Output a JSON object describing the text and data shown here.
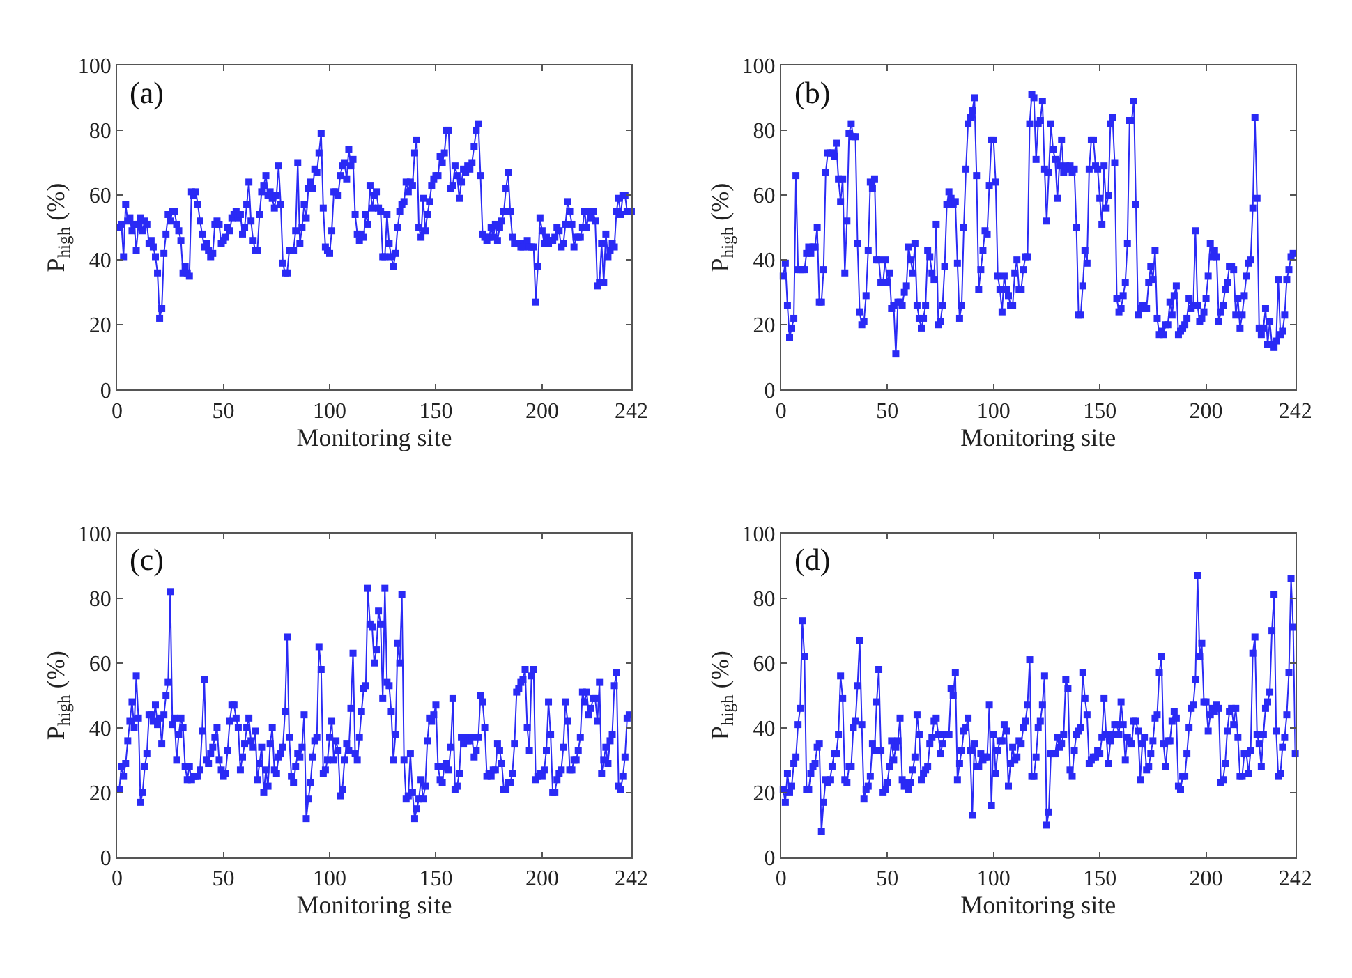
{
  "chart_data": [
    {
      "type": "line",
      "annotations": [
        "(a)"
      ],
      "xlabel": "Monitoring site",
      "ylabel": "P$_{high}$ (%)",
      "xlim": [
        0,
        242
      ],
      "xticks": [
        0,
        50,
        100,
        150,
        200,
        242
      ],
      "ylim": [
        0,
        100
      ],
      "yticks": [
        0,
        20,
        40,
        60,
        80,
        100
      ],
      "grid": false,
      "marker": "square",
      "line_style": "solid",
      "x": [
        1,
        2,
        3,
        4,
        5,
        6,
        7,
        8,
        9,
        10,
        11,
        12,
        13,
        14,
        15,
        16,
        17,
        18,
        19,
        20,
        21,
        22,
        23,
        24,
        25,
        26,
        27,
        28,
        29,
        30,
        31,
        32,
        33,
        34,
        35,
        36,
        37,
        38,
        39,
        40,
        41,
        42,
        43,
        44,
        45,
        46,
        47,
        48,
        49,
        50,
        51,
        52,
        53,
        54,
        55,
        56,
        57,
        58,
        59,
        60,
        61,
        62,
        63,
        64,
        65,
        66,
        67,
        68,
        69,
        70,
        71,
        72,
        73,
        74,
        75,
        76,
        77,
        78,
        79,
        80,
        81,
        82,
        83,
        84,
        85,
        86,
        87,
        88,
        89,
        90,
        91,
        92,
        93,
        94,
        95,
        96,
        97,
        98,
        99,
        100,
        101,
        102,
        103,
        104,
        105,
        106,
        107,
        108,
        109,
        110,
        111,
        112,
        113,
        114,
        115,
        116,
        117,
        118,
        119,
        120,
        121,
        122,
        123,
        124,
        125,
        126,
        127,
        128,
        129,
        130,
        131,
        132,
        133,
        134,
        135,
        136,
        137,
        138,
        139,
        140,
        141,
        142,
        143,
        144,
        145,
        146,
        147,
        148,
        149,
        150,
        151,
        152,
        153,
        154,
        155,
        156,
        157,
        158,
        159,
        160,
        161,
        162,
        163,
        164,
        165,
        166,
        167,
        168,
        169,
        170,
        171,
        172,
        173,
        174,
        175,
        176,
        177,
        178,
        179,
        180,
        181,
        182,
        183,
        184,
        185,
        186,
        187,
        188,
        189,
        190,
        191,
        192,
        193,
        194,
        195,
        196,
        197,
        198,
        199,
        200,
        201,
        202,
        203,
        204,
        205,
        206,
        207,
        208,
        209,
        210,
        211,
        212,
        213,
        214,
        215,
        216,
        217,
        218,
        219,
        220,
        221,
        222,
        223,
        224,
        225,
        226,
        227,
        228,
        229,
        230,
        231,
        232,
        233,
        234,
        235,
        236,
        237,
        238,
        239,
        240,
        241,
        242
      ],
      "series": [
        {
          "color": "#2a2af5",
          "values": [
            50,
            51,
            41,
            57,
            52,
            53,
            49,
            51,
            43,
            51,
            53,
            49,
            52,
            51,
            45,
            46,
            44,
            41,
            36,
            22,
            25,
            42,
            48,
            54,
            52,
            55,
            55,
            51,
            49,
            46,
            36,
            38,
            36,
            35,
            61,
            60,
            61,
            57,
            52,
            48,
            44,
            45,
            43,
            41,
            42,
            51,
            52,
            51,
            45,
            46,
            47,
            50,
            49,
            53,
            54,
            55,
            53,
            54,
            48,
            50,
            57,
            64,
            52,
            46,
            43,
            43,
            54,
            61,
            63,
            66,
            60,
            61,
            59,
            56,
            60,
            69,
            57,
            39,
            36,
            36,
            43,
            43,
            43,
            49,
            70,
            45,
            50,
            57,
            53,
            62,
            64,
            62,
            68,
            67,
            73,
            79,
            56,
            44,
            43,
            42,
            49,
            61,
            61,
            60,
            66,
            69,
            70,
            65,
            74,
            69,
            71,
            54,
            48,
            46,
            48,
            47,
            54,
            51,
            63,
            56,
            60,
            61,
            56,
            55,
            41,
            41,
            54,
            45,
            41,
            38,
            42,
            50,
            55,
            57,
            58,
            64,
            61,
            64,
            63,
            73,
            77,
            50,
            47,
            59,
            49,
            54,
            58,
            63,
            65,
            66,
            66,
            72,
            70,
            73,
            80,
            80,
            62,
            63,
            69,
            66,
            59,
            64,
            68,
            67,
            69,
            68,
            70,
            75,
            80,
            82,
            66,
            48,
            47,
            46,
            47,
            50,
            47,
            51,
            46,
            50,
            52,
            55,
            62,
            67,
            55,
            47,
            45,
            45,
            45,
            44,
            44,
            45,
            46,
            44,
            44,
            44,
            27,
            38,
            53,
            49,
            45,
            47,
            45,
            46,
            46,
            47,
            50,
            49,
            44,
            45,
            51,
            58,
            55,
            51,
            44,
            47,
            47,
            47,
            50,
            55,
            50,
            55,
            53,
            55,
            52,
            32,
            33,
            45,
            33,
            48,
            41,
            43,
            45,
            44,
            55,
            59,
            54,
            60,
            60,
            55,
            55,
            55
          ]
        }
      ]
    },
    {
      "type": "line",
      "annotations": [
        "(b)"
      ],
      "xlabel": "Monitoring site",
      "ylabel": "P$_{high}$ (%)",
      "xlim": [
        0,
        242
      ],
      "xticks": [
        0,
        50,
        100,
        150,
        200,
        242
      ],
      "ylim": [
        0,
        100
      ],
      "yticks": [
        0,
        20,
        40,
        60,
        80,
        100
      ],
      "grid": false,
      "marker": "square",
      "line_style": "solid",
      "x": [
        1,
        2,
        3,
        4,
        5,
        6,
        7,
        8,
        9,
        10,
        11,
        12,
        13,
        14,
        15,
        16,
        17,
        18,
        19,
        20,
        21,
        22,
        23,
        24,
        25,
        26,
        27,
        28,
        29,
        30,
        31,
        32,
        33,
        34,
        35,
        36,
        37,
        38,
        39,
        40,
        41,
        42,
        43,
        44,
        45,
        46,
        47,
        48,
        49,
        50,
        51,
        52,
        53,
        54,
        55,
        56,
        57,
        58,
        59,
        60,
        61,
        62,
        63,
        64,
        65,
        66,
        67,
        68,
        69,
        70,
        71,
        72,
        73,
        74,
        75,
        76,
        77,
        78,
        79,
        80,
        81,
        82,
        83,
        84,
        85,
        86,
        87,
        88,
        89,
        90,
        91,
        92,
        93,
        94,
        95,
        96,
        97,
        98,
        99,
        100,
        101,
        102,
        103,
        104,
        105,
        106,
        107,
        108,
        109,
        110,
        111,
        112,
        113,
        114,
        115,
        116,
        117,
        118,
        119,
        120,
        121,
        122,
        123,
        124,
        125,
        126,
        127,
        128,
        129,
        130,
        131,
        132,
        133,
        134,
        135,
        136,
        137,
        138,
        139,
        140,
        141,
        142,
        143,
        144,
        145,
        146,
        147,
        148,
        149,
        150,
        151,
        152,
        153,
        154,
        155,
        156,
        157,
        158,
        159,
        160,
        161,
        162,
        163,
        164,
        165,
        166,
        167,
        168,
        169,
        170,
        171,
        172,
        173,
        174,
        175,
        176,
        177,
        178,
        179,
        180,
        181,
        182,
        183,
        184,
        185,
        186,
        187,
        188,
        189,
        190,
        191,
        192,
        193,
        194,
        195,
        196,
        197,
        198,
        199,
        200,
        201,
        202,
        203,
        204,
        205,
        206,
        207,
        208,
        209,
        210,
        211,
        212,
        213,
        214,
        215,
        216,
        217,
        218,
        219,
        220,
        221,
        222,
        223,
        224,
        225,
        226,
        227,
        228,
        229,
        230,
        231,
        232,
        233,
        234,
        235,
        236,
        237,
        238,
        239,
        240,
        241
      ],
      "series": [
        {
          "color": "#2a2af5",
          "values": [
            35,
            39,
            26,
            16,
            19,
            22,
            66,
            37,
            37,
            37,
            37,
            42,
            44,
            42,
            44,
            44,
            50,
            27,
            27,
            37,
            67,
            73,
            73,
            73,
            72,
            76,
            65,
            58,
            65,
            36,
            52,
            79,
            82,
            78,
            78,
            45,
            24,
            20,
            21,
            29,
            43,
            64,
            62,
            65,
            40,
            40,
            33,
            33,
            40,
            33,
            36,
            25,
            26,
            11,
            27,
            27,
            26,
            30,
            32,
            44,
            40,
            36,
            45,
            26,
            22,
            19,
            22,
            26,
            43,
            41,
            36,
            34,
            51,
            20,
            21,
            26,
            38,
            57,
            61,
            59,
            57,
            58,
            39,
            22,
            26,
            50,
            68,
            82,
            84,
            86,
            90,
            66,
            31,
            37,
            43,
            49,
            48,
            63,
            77,
            77,
            64,
            35,
            31,
            24,
            35,
            31,
            29,
            26,
            26,
            36,
            40,
            31,
            31,
            37,
            41,
            41,
            82,
            91,
            90,
            71,
            82,
            83,
            89,
            68,
            52,
            67,
            82,
            74,
            71,
            59,
            69,
            77,
            67,
            69,
            68,
            69,
            67,
            68,
            50,
            23,
            23,
            32,
            43,
            39,
            68,
            77,
            77,
            69,
            68,
            59,
            51,
            69,
            56,
            60,
            82,
            84,
            70,
            28,
            24,
            25,
            29,
            33,
            45,
            83,
            83,
            89,
            57,
            23,
            25,
            26,
            25,
            25,
            33,
            38,
            34,
            43,
            22,
            17,
            18,
            17,
            20,
            20,
            27,
            23,
            29,
            32,
            17,
            18,
            19,
            20,
            22,
            28,
            25,
            26,
            49,
            26,
            21,
            22,
            24,
            28,
            35,
            45,
            41,
            43,
            41,
            21,
            24,
            26,
            31,
            33,
            38,
            38,
            37,
            23,
            28,
            19,
            23,
            29,
            35,
            39,
            40,
            56,
            84,
            59,
            19,
            17,
            19,
            25,
            14,
            21,
            14,
            13,
            15,
            34,
            17,
            18,
            23,
            34,
            37,
            41,
            42
          ]
        }
      ]
    },
    {
      "type": "line",
      "annotations": [
        "(c)"
      ],
      "xlabel": "Monitoring site",
      "ylabel": "P$_{high}$ (%)",
      "xlim": [
        0,
        242
      ],
      "xticks": [
        0,
        50,
        100,
        150,
        200,
        242
      ],
      "ylim": [
        0,
        100
      ],
      "yticks": [
        0,
        20,
        40,
        60,
        80,
        100
      ],
      "grid": false,
      "marker": "square",
      "line_style": "solid",
      "x": [
        1,
        2,
        3,
        4,
        5,
        6,
        7,
        8,
        9,
        10,
        11,
        12,
        13,
        14,
        15,
        16,
        17,
        18,
        19,
        20,
        21,
        22,
        23,
        24,
        25,
        26,
        27,
        28,
        29,
        30,
        31,
        32,
        33,
        34,
        35,
        36,
        37,
        38,
        39,
        40,
        41,
        42,
        43,
        44,
        45,
        46,
        47,
        48,
        49,
        50,
        51,
        52,
        53,
        54,
        55,
        56,
        57,
        58,
        59,
        60,
        61,
        62,
        63,
        64,
        65,
        66,
        67,
        68,
        69,
        70,
        71,
        72,
        73,
        74,
        75,
        76,
        77,
        78,
        79,
        80,
        81,
        82,
        83,
        84,
        85,
        86,
        87,
        88,
        89,
        90,
        91,
        92,
        93,
        94,
        95,
        96,
        97,
        98,
        99,
        100,
        101,
        102,
        103,
        104,
        105,
        106,
        107,
        108,
        109,
        110,
        111,
        112,
        113,
        114,
        115,
        116,
        117,
        118,
        119,
        120,
        121,
        122,
        123,
        124,
        125,
        126,
        127,
        128,
        129,
        130,
        131,
        132,
        133,
        134,
        135,
        136,
        137,
        138,
        139,
        140,
        141,
        142,
        143,
        144,
        145,
        146,
        147,
        148,
        149,
        150,
        151,
        152,
        153,
        154,
        155,
        156,
        157,
        158,
        159,
        160,
        161,
        162,
        163,
        164,
        165,
        166,
        167,
        168,
        169,
        170,
        171,
        172,
        173,
        174,
        175,
        176,
        177,
        178,
        179,
        180,
        181,
        182,
        183,
        184,
        185,
        186,
        187,
        188,
        189,
        190,
        191,
        192,
        193,
        194,
        195,
        196,
        197,
        198,
        199,
        200,
        201,
        202,
        203,
        204,
        205,
        206,
        207,
        208,
        209,
        210,
        211,
        212,
        213,
        214,
        215,
        216,
        217,
        218,
        219,
        220,
        221,
        222,
        223,
        224,
        225,
        226,
        227,
        228,
        229,
        230,
        231,
        232,
        233,
        234,
        235,
        236,
        237,
        238,
        239,
        240,
        241
      ],
      "series": [
        {
          "color": "#2a2af5",
          "values": [
            21,
            28,
            25,
            29,
            36,
            42,
            48,
            40,
            56,
            43,
            17,
            20,
            28,
            32,
            44,
            44,
            42,
            47,
            41,
            43,
            35,
            44,
            50,
            54,
            82,
            41,
            43,
            30,
            38,
            43,
            40,
            28,
            24,
            28,
            24,
            25,
            25,
            25,
            27,
            39,
            55,
            30,
            29,
            32,
            34,
            37,
            40,
            30,
            27,
            25,
            26,
            33,
            42,
            47,
            47,
            43,
            40,
            27,
            31,
            35,
            40,
            43,
            36,
            34,
            39,
            24,
            29,
            34,
            20,
            27,
            22,
            35,
            40,
            27,
            26,
            31,
            32,
            34,
            45,
            68,
            37,
            25,
            23,
            28,
            32,
            31,
            34,
            44,
            12,
            18,
            23,
            31,
            36,
            37,
            65,
            58,
            26,
            27,
            30,
            37,
            42,
            30,
            36,
            33,
            19,
            21,
            30,
            35,
            33,
            46,
            63,
            32,
            30,
            37,
            45,
            52,
            53,
            83,
            72,
            71,
            60,
            64,
            76,
            72,
            49,
            83,
            54,
            53,
            45,
            30,
            38,
            66,
            60,
            81,
            30,
            18,
            19,
            32,
            20,
            12,
            15,
            18,
            24,
            18,
            22,
            36,
            43,
            42,
            44,
            47,
            28,
            24,
            23,
            28,
            29,
            27,
            34,
            49,
            21,
            22,
            26,
            37,
            35,
            37,
            36,
            36,
            37,
            31,
            33,
            37,
            50,
            48,
            40,
            25,
            26,
            25,
            27,
            27,
            35,
            33,
            29,
            21,
            21,
            23,
            23,
            26,
            35,
            51,
            52,
            54,
            55,
            58,
            40,
            33,
            56,
            58,
            24,
            25,
            26,
            25,
            27,
            33,
            48,
            38,
            20,
            20,
            24,
            26,
            27,
            34,
            48,
            42,
            27,
            27,
            30,
            30,
            33,
            37,
            51,
            48,
            51,
            44,
            46,
            49,
            49,
            42,
            54,
            26,
            30,
            34,
            29,
            36,
            38,
            53,
            57,
            22,
            21,
            25,
            31,
            43,
            44
          ]
        }
      ]
    },
    {
      "type": "line",
      "annotations": [
        "(d)"
      ],
      "xlabel": "Monitoring site",
      "ylabel": "P$_{high}$ (%)",
      "xlim": [
        0,
        242
      ],
      "xticks": [
        0,
        50,
        100,
        150,
        200,
        242
      ],
      "ylim": [
        0,
        100
      ],
      "yticks": [
        0,
        20,
        40,
        60,
        80,
        100
      ],
      "grid": false,
      "marker": "square",
      "line_style": "solid",
      "x": [
        1,
        2,
        3,
        4,
        5,
        6,
        7,
        8,
        9,
        10,
        11,
        12,
        13,
        14,
        15,
        16,
        17,
        18,
        19,
        20,
        21,
        22,
        23,
        24,
        25,
        26,
        27,
        28,
        29,
        30,
        31,
        32,
        33,
        34,
        35,
        36,
        37,
        38,
        39,
        40,
        41,
        42,
        43,
        44,
        45,
        46,
        47,
        48,
        49,
        50,
        51,
        52,
        53,
        54,
        55,
        56,
        57,
        58,
        59,
        60,
        61,
        62,
        63,
        64,
        65,
        66,
        67,
        68,
        69,
        70,
        71,
        72,
        73,
        74,
        75,
        76,
        77,
        78,
        79,
        80,
        81,
        82,
        83,
        84,
        85,
        86,
        87,
        88,
        89,
        90,
        91,
        92,
        93,
        94,
        95,
        96,
        97,
        98,
        99,
        100,
        101,
        102,
        103,
        104,
        105,
        106,
        107,
        108,
        109,
        110,
        111,
        112,
        113,
        114,
        115,
        116,
        117,
        118,
        119,
        120,
        121,
        122,
        123,
        124,
        125,
        126,
        127,
        128,
        129,
        130,
        131,
        132,
        133,
        134,
        135,
        136,
        137,
        138,
        139,
        140,
        141,
        142,
        143,
        144,
        145,
        146,
        147,
        148,
        149,
        150,
        151,
        152,
        153,
        154,
        155,
        156,
        157,
        158,
        159,
        160,
        161,
        162,
        163,
        164,
        165,
        166,
        167,
        168,
        169,
        170,
        171,
        172,
        173,
        174,
        175,
        176,
        177,
        178,
        179,
        180,
        181,
        182,
        183,
        184,
        185,
        186,
        187,
        188,
        189,
        190,
        191,
        192,
        193,
        194,
        195,
        196,
        197,
        198,
        199,
        200,
        201,
        202,
        203,
        204,
        205,
        206,
        207,
        208,
        209,
        210,
        211,
        212,
        213,
        214,
        215,
        216,
        217,
        218,
        219,
        220,
        221,
        222,
        223,
        224,
        225,
        226,
        227,
        228,
        229,
        230,
        231,
        232,
        233,
        234,
        235,
        236,
        237,
        238,
        239,
        240,
        241,
        242
      ],
      "series": [
        {
          "color": "#2a2af5",
          "values": [
            21,
            17,
            26,
            20,
            22,
            29,
            31,
            41,
            46,
            73,
            62,
            21,
            21,
            26,
            28,
            29,
            34,
            35,
            8,
            17,
            24,
            23,
            24,
            28,
            32,
            32,
            38,
            56,
            49,
            24,
            23,
            28,
            28,
            40,
            42,
            53,
            67,
            41,
            18,
            21,
            22,
            25,
            35,
            33,
            48,
            58,
            33,
            20,
            21,
            23,
            28,
            36,
            30,
            34,
            36,
            43,
            24,
            22,
            23,
            21,
            23,
            27,
            31,
            44,
            38,
            24,
            26,
            27,
            28,
            35,
            37,
            42,
            43,
            38,
            32,
            35,
            38,
            38,
            38,
            52,
            50,
            57,
            24,
            29,
            33,
            39,
            40,
            43,
            33,
            13,
            35,
            28,
            28,
            32,
            30,
            31,
            31,
            47,
            16,
            38,
            26,
            33,
            36,
            36,
            41,
            39,
            22,
            29,
            34,
            30,
            31,
            36,
            35,
            40,
            42,
            47,
            61,
            25,
            25,
            31,
            40,
            42,
            47,
            56,
            10,
            14,
            32,
            32,
            32,
            37,
            34,
            35,
            38,
            55,
            52,
            27,
            25,
            33,
            38,
            39,
            40,
            57,
            49,
            44,
            29,
            30,
            31,
            31,
            33,
            32,
            37,
            49,
            38,
            29,
            36,
            38,
            41,
            41,
            38,
            48,
            41,
            30,
            37,
            36,
            35,
            42,
            42,
            39,
            24,
            35,
            37,
            27,
            28,
            32,
            36,
            43,
            44,
            57,
            62,
            35,
            28,
            36,
            36,
            42,
            45,
            43,
            22,
            21,
            25,
            25,
            32,
            40,
            46,
            47,
            55,
            87,
            62,
            66,
            48,
            48,
            39,
            44,
            46,
            45,
            47,
            46,
            23,
            24,
            29,
            39,
            45,
            46,
            41,
            46,
            37,
            25,
            25,
            32,
            32,
            26,
            33,
            63,
            68,
            38,
            35,
            28,
            38,
            46,
            48,
            51,
            70,
            81,
            39,
            25,
            26,
            34,
            37,
            44,
            57,
            86,
            71,
            32
          ]
        }
      ]
    }
  ]
}
